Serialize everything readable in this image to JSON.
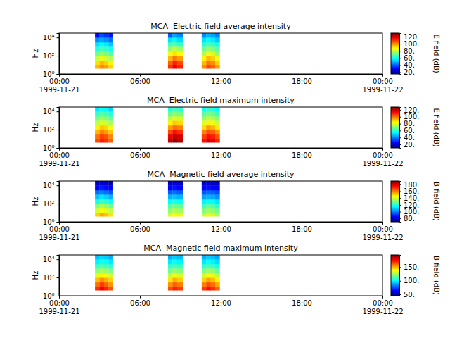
{
  "chart_data": [
    {
      "type": "heatmap",
      "title": "MCA  Electric field average intensity",
      "ylabel": "Hz",
      "log": "y",
      "xlim": [
        "1999-11-21T00:00",
        "1999-11-22T00:00"
      ],
      "xticks": [
        {
          "value": "1999-11-21T00:00",
          "label": "00:00\n1999-11-21"
        },
        {
          "value": "1999-11-21T06:00",
          "label": "06:00"
        },
        {
          "value": "1999-11-21T12:00",
          "label": "12:00"
        },
        {
          "value": "1999-11-21T18:00",
          "label": "18:00"
        },
        {
          "value": "1999-11-22T00:00",
          "label": "00:00\n1999-11-22"
        }
      ],
      "ylim": [
        1,
        30000
      ],
      "yticks": [
        {
          "value": 1,
          "label": "10⁰"
        },
        {
          "value": 100,
          "label": "10²"
        },
        {
          "value": 10000,
          "label": "10⁴"
        }
      ],
      "y": [
        4,
        10,
        30,
        100,
        300,
        1000,
        3000,
        10000,
        30000
      ],
      "segments": [
        {
          "x": [
            "1999-11-21T02:40",
            "1999-11-21T03:00",
            "1999-11-21T03:20",
            "1999-11-21T03:40",
            "1999-11-21T04:00"
          ],
          "values": [
            [
              95,
              100,
              98,
              92
            ],
            [
              90,
              95,
              92,
              88
            ],
            [
              80,
              85,
              82,
              78
            ],
            [
              70,
              75,
              72,
              68
            ],
            [
              62,
              66,
              64,
              60
            ],
            [
              55,
              58,
              56,
              52
            ],
            [
              45,
              48,
              46,
              42
            ],
            [
              30,
              38,
              35,
              32
            ]
          ]
        },
        {
          "x": [
            "1999-11-21T08:05",
            "1999-11-21T08:25",
            "1999-11-21T08:45",
            "1999-11-21T09:10"
          ],
          "values": [
            [
              110,
              118,
              112
            ],
            [
              105,
              112,
              108
            ],
            [
              95,
              102,
              98
            ],
            [
              85,
              90,
              86
            ],
            [
              75,
              80,
              76
            ],
            [
              65,
              68,
              64
            ],
            [
              55,
              58,
              54
            ],
            [
              40,
              48,
              45
            ]
          ]
        },
        {
          "x": [
            "1999-11-21T10:35",
            "1999-11-21T10:55",
            "1999-11-21T11:15",
            "1999-11-21T11:35",
            "1999-11-21T11:55"
          ],
          "values": [
            [
              100,
              108,
              105,
              98
            ],
            [
              95,
              102,
              100,
              92
            ],
            [
              88,
              95,
              92,
              85
            ],
            [
              78,
              85,
              82,
              75
            ],
            [
              70,
              75,
              72,
              68
            ],
            [
              62,
              66,
              64,
              60
            ],
            [
              55,
              58,
              56,
              52
            ],
            [
              45,
              50,
              48,
              44
            ]
          ]
        }
      ],
      "colorbar": {
        "label": "E field (dB)",
        "range": [
          15,
          130
        ],
        "ticks": [
          {
            "value": 20,
            "label": "20."
          },
          {
            "value": 40,
            "label": "40."
          },
          {
            "value": 60,
            "label": "60."
          },
          {
            "value": 80,
            "label": "80."
          },
          {
            "value": 100,
            "label": "100."
          },
          {
            "value": 120,
            "label": "120."
          }
        ]
      }
    },
    {
      "type": "heatmap",
      "title": "MCA  Electric field maximum intensity",
      "ylabel": "Hz",
      "log": "y",
      "xlim": [
        "1999-11-21T00:00",
        "1999-11-22T00:00"
      ],
      "xticks": [
        {
          "value": "1999-11-21T00:00",
          "label": "00:00\n1999-11-21"
        },
        {
          "value": "1999-11-21T06:00",
          "label": "06:00"
        },
        {
          "value": "1999-11-21T12:00",
          "label": "12:00"
        },
        {
          "value": "1999-11-21T18:00",
          "label": "18:00"
        },
        {
          "value": "1999-11-22T00:00",
          "label": "00:00\n1999-11-22"
        }
      ],
      "ylim": [
        1,
        30000
      ],
      "yticks": [
        {
          "value": 1,
          "label": "10⁰"
        },
        {
          "value": 100,
          "label": "10²"
        },
        {
          "value": 10000,
          "label": "10⁴"
        }
      ],
      "y": [
        4,
        10,
        30,
        100,
        300,
        1000,
        3000,
        10000,
        30000
      ],
      "segments": [
        {
          "x": [
            "1999-11-21T02:40",
            "1999-11-21T03:00",
            "1999-11-21T03:20",
            "1999-11-21T03:40",
            "1999-11-21T04:00"
          ],
          "values": [
            [
              105,
              110,
              108,
              102
            ],
            [
              100,
              106,
              104,
              98
            ],
            [
              92,
              98,
              95,
              90
            ],
            [
              85,
              90,
              88,
              82
            ],
            [
              76,
              80,
              78,
              74
            ],
            [
              68,
              72,
              70,
              66
            ],
            [
              60,
              64,
              62,
              58
            ],
            [
              52,
              56,
              54,
              50
            ]
          ]
        },
        {
          "x": [
            "1999-11-21T08:05",
            "1999-11-21T08:25",
            "1999-11-21T08:45",
            "1999-11-21T09:10"
          ],
          "values": [
            [
              120,
              126,
              122
            ],
            [
              115,
              120,
              118
            ],
            [
              105,
              112,
              108
            ],
            [
              95,
              100,
              98
            ],
            [
              85,
              90,
              88
            ],
            [
              75,
              80,
              78
            ],
            [
              66,
              70,
              68
            ],
            [
              58,
              62,
              60
            ]
          ]
        },
        {
          "x": [
            "1999-11-21T10:35",
            "1999-11-21T10:55",
            "1999-11-21T11:15",
            "1999-11-21T11:35",
            "1999-11-21T11:55"
          ],
          "values": [
            [
              112,
              118,
              115,
              110
            ],
            [
              106,
              112,
              110,
              104
            ],
            [
              98,
              104,
              102,
              96
            ],
            [
              88,
              95,
              92,
              86
            ],
            [
              80,
              85,
              82,
              78
            ],
            [
              72,
              76,
              74,
              70
            ],
            [
              64,
              68,
              66,
              62
            ],
            [
              56,
              60,
              58,
              54
            ]
          ]
        }
      ],
      "colorbar": {
        "label": "E field (dB)",
        "range": [
          10,
          128
        ],
        "ticks": [
          {
            "value": 20,
            "label": "20."
          },
          {
            "value": 40,
            "label": "40."
          },
          {
            "value": 60,
            "label": "60."
          },
          {
            "value": 80,
            "label": "80."
          },
          {
            "value": 100,
            "label": "100."
          },
          {
            "value": 120,
            "label": "120."
          }
        ]
      }
    },
    {
      "type": "heatmap",
      "title": "MCA  Magnetic field average intensity",
      "ylabel": "Hz",
      "log": "y",
      "xlim": [
        "1999-11-21T00:00",
        "1999-11-22T00:00"
      ],
      "xticks": [
        {
          "value": "1999-11-21T00:00",
          "label": "00:00\n1999-11-21"
        },
        {
          "value": "1999-11-21T06:00",
          "label": "06:00"
        },
        {
          "value": "1999-11-21T12:00",
          "label": "12:00"
        },
        {
          "value": "1999-11-21T18:00",
          "label": "18:00"
        },
        {
          "value": "1999-11-22T00:00",
          "label": "00:00\n1999-11-22"
        }
      ],
      "ylim": [
        1,
        30000
      ],
      "yticks": [
        {
          "value": 1,
          "label": "10⁰"
        },
        {
          "value": 100,
          "label": "10²"
        },
        {
          "value": 10000,
          "label": "10⁴"
        }
      ],
      "y": [
        4,
        10,
        30,
        100,
        300,
        1000,
        3000,
        10000,
        30000
      ],
      "segments": [
        {
          "x": [
            "1999-11-21T02:40",
            "1999-11-21T03:00",
            "1999-11-21T03:20",
            "1999-11-21T03:40",
            "1999-11-21T04:00"
          ],
          "values": [
            [
              150,
              155,
              152,
              148
            ],
            [
              140,
              145,
              142,
              138
            ],
            [
              130,
              135,
              132,
              128
            ],
            [
              118,
              122,
              120,
              116
            ],
            [
              108,
              112,
              110,
              106
            ],
            [
              98,
              100,
              98,
              95
            ],
            [
              85,
              88,
              86,
              84
            ],
            [
              78,
              80,
              78,
              76
            ]
          ]
        },
        {
          "x": [
            "1999-11-21T08:05",
            "1999-11-21T08:25",
            "1999-11-21T08:45",
            "1999-11-21T09:10"
          ],
          "values": [
            [
              140,
              145,
              142
            ],
            [
              132,
              136,
              134
            ],
            [
              124,
              128,
              126
            ],
            [
              115,
              118,
              116
            ],
            [
              106,
              108,
              106
            ],
            [
              96,
              98,
              96
            ],
            [
              85,
              87,
              85
            ],
            [
              78,
              80,
              78
            ]
          ]
        },
        {
          "x": [
            "1999-11-21T10:35",
            "1999-11-21T10:55",
            "1999-11-21T11:15",
            "1999-11-21T11:35",
            "1999-11-21T11:55"
          ],
          "values": [
            [
              138,
              142,
              140,
              136
            ],
            [
              130,
              134,
              132,
              128
            ],
            [
              122,
              126,
              124,
              120
            ],
            [
              114,
              116,
              115,
              112
            ],
            [
              104,
              106,
              105,
              102
            ],
            [
              95,
              97,
              96,
              94
            ],
            [
              85,
              86,
              85,
              84
            ],
            [
              78,
              79,
              78,
              77
            ]
          ]
        }
      ],
      "colorbar": {
        "label": "B field (dB)",
        "range": [
          70,
          190
        ],
        "ticks": [
          {
            "value": 80,
            "label": "80."
          },
          {
            "value": 100,
            "label": "100."
          },
          {
            "value": 120,
            "label": "120."
          },
          {
            "value": 140,
            "label": "140."
          },
          {
            "value": 160,
            "label": "160."
          },
          {
            "value": 180,
            "label": "180."
          }
        ]
      }
    },
    {
      "type": "heatmap",
      "title": "MCA  Magnetic field maximum intensity",
      "ylabel": "Hz",
      "log": "y",
      "xlim": [
        "1999-11-21T00:00",
        "1999-11-22T00:00"
      ],
      "xticks": [
        {
          "value": "1999-11-21T00:00",
          "label": "00:00\n1999-11-21"
        },
        {
          "value": "1999-11-21T06:00",
          "label": "06:00"
        },
        {
          "value": "1999-11-21T12:00",
          "label": "12:00"
        },
        {
          "value": "1999-11-21T18:00",
          "label": "18:00"
        },
        {
          "value": "1999-11-22T00:00",
          "label": "00:00\n1999-11-22"
        }
      ],
      "ylim": [
        1,
        30000
      ],
      "yticks": [
        {
          "value": 1,
          "label": "10⁰"
        },
        {
          "value": 100,
          "label": "10²"
        },
        {
          "value": 10000,
          "label": "10⁴"
        }
      ],
      "y": [
        4,
        10,
        30,
        100,
        300,
        1000,
        3000,
        10000,
        30000
      ],
      "segments": [
        {
          "x": [
            "1999-11-21T02:40",
            "1999-11-21T03:00",
            "1999-11-21T03:20",
            "1999-11-21T03:40",
            "1999-11-21T04:00"
          ],
          "values": [
            [
              170,
              178,
              172,
              165
            ],
            [
              160,
              168,
              162,
              155
            ],
            [
              148,
              155,
              150,
              145
            ],
            [
              135,
              140,
              138,
              132
            ],
            [
              122,
              126,
              124,
              120
            ],
            [
              110,
              114,
              112,
              108
            ],
            [
              100,
              104,
              102,
              98
            ],
            [
              92,
              96,
              94,
              90
            ]
          ]
        },
        {
          "x": [
            "1999-11-21T08:05",
            "1999-11-21T08:25",
            "1999-11-21T08:45",
            "1999-11-21T09:10"
          ],
          "values": [
            [
              165,
              172,
              168
            ],
            [
              155,
              162,
              158
            ],
            [
              142,
              150,
              146
            ],
            [
              130,
              136,
              133
            ],
            [
              118,
              124,
              121
            ],
            [
              108,
              112,
              110
            ],
            [
              98,
              102,
              100
            ],
            [
              90,
              94,
              92
            ]
          ]
        },
        {
          "x": [
            "1999-11-21T10:35",
            "1999-11-21T10:55",
            "1999-11-21T11:15",
            "1999-11-21T11:35",
            "1999-11-21T11:55"
          ],
          "values": [
            [
              168,
              175,
              170,
              162
            ],
            [
              158,
              165,
              160,
              152
            ],
            [
              145,
              152,
              148,
              140
            ],
            [
              132,
              138,
              135,
              128
            ],
            [
              120,
              125,
              122,
              116
            ],
            [
              108,
              112,
              110,
              105
            ],
            [
              98,
              102,
              100,
              96
            ],
            [
              90,
              94,
              92,
              88
            ]
          ]
        }
      ],
      "colorbar": {
        "label": "B field (dB)",
        "range": [
          45,
          195
        ],
        "ticks": [
          {
            "value": 50,
            "label": "50."
          },
          {
            "value": 100,
            "label": "100."
          },
          {
            "value": 150,
            "label": "150."
          }
        ]
      }
    }
  ]
}
